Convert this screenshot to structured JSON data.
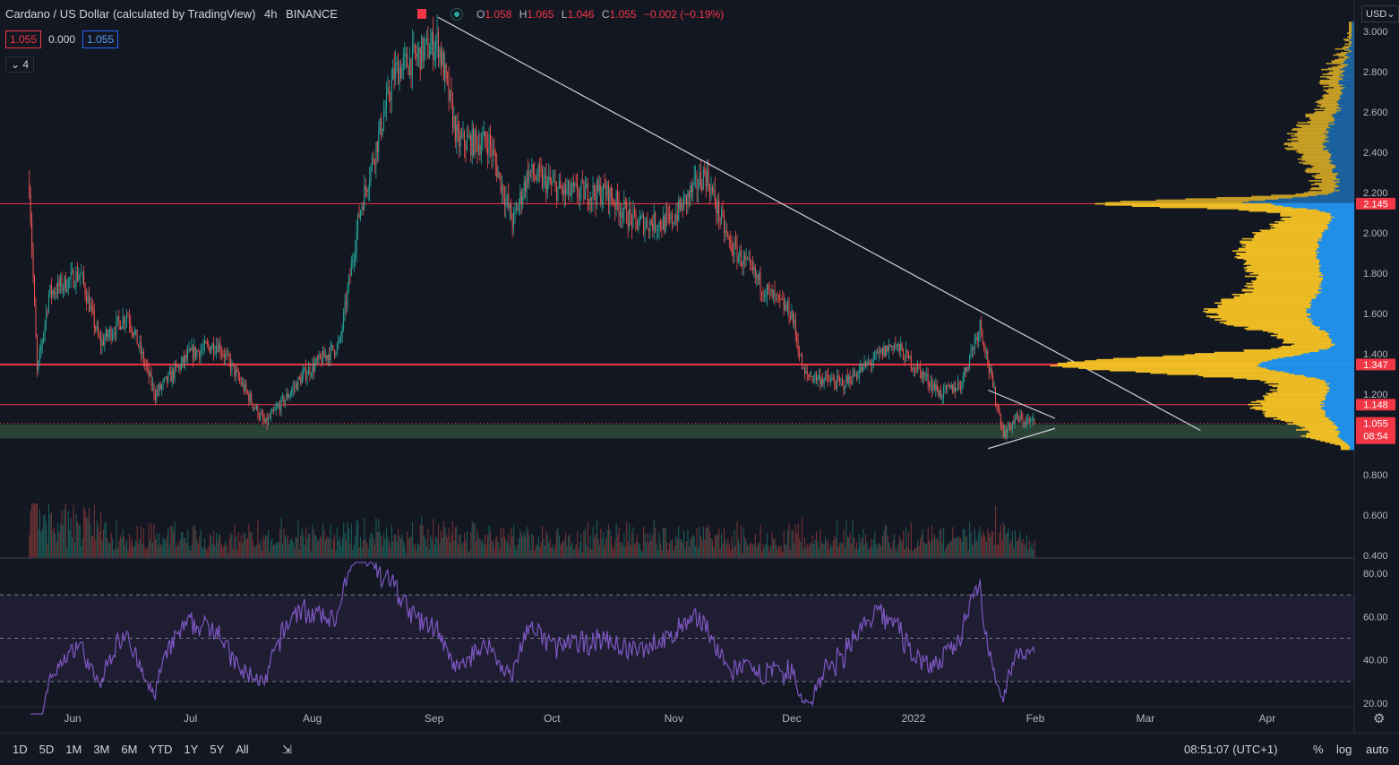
{
  "header": {
    "title": "Cardano / US Dollar (calculated by TradingView)",
    "interval": "4h",
    "exchange": "BINANCE",
    "ohlc": {
      "open": "1.058",
      "high": "1.065",
      "low": "1.046",
      "close": "1.055",
      "change": "−0.002 (−0.19%)"
    },
    "o_label": "O",
    "h_label": "H",
    "l_label": "L",
    "c_label": "C"
  },
  "price_boxes": {
    "bid": "1.055",
    "spread": "0.000",
    "ask": "1.055"
  },
  "indicator_badge": "4",
  "currency_selector": "USD",
  "colors": {
    "bg": "#131722",
    "up": "#26a69a",
    "down": "#ef5350",
    "rsi": "#7e57c2",
    "red_line": "#f23645",
    "vp_up": "#2196f3",
    "vp_down": "#f7c325",
    "support_zone": "#2f4b3a"
  },
  "chart_data": {
    "type": "candlestick",
    "timeframe": "4h",
    "ylim": [
      0.4,
      3.05
    ],
    "y_ticks": [
      "3.000",
      "2.800",
      "2.600",
      "2.400",
      "2.200",
      "2.000",
      "1.800",
      "1.600",
      "1.400",
      "1.200",
      "0.800",
      "0.600",
      "0.400"
    ],
    "x_ticks": [
      "Jun",
      "Jul",
      "Aug",
      "Sep",
      "Oct",
      "Nov",
      "Dec",
      "2022",
      "Feb",
      "Mar",
      "Apr"
    ],
    "price_path": [
      {
        "t": "2021-05-21",
        "p": 2.25
      },
      {
        "t": "2021-05-23",
        "p": 1.3
      },
      {
        "t": "2021-05-26",
        "p": 1.7
      },
      {
        "t": "2021-06-03",
        "p": 1.8
      },
      {
        "t": "2021-06-08",
        "p": 1.45
      },
      {
        "t": "2021-06-15",
        "p": 1.6
      },
      {
        "t": "2021-06-22",
        "p": 1.2
      },
      {
        "t": "2021-07-01",
        "p": 1.4
      },
      {
        "t": "2021-07-08",
        "p": 1.45
      },
      {
        "t": "2021-07-20",
        "p": 1.05
      },
      {
        "t": "2021-07-30",
        "p": 1.3
      },
      {
        "t": "2021-08-08",
        "p": 1.45
      },
      {
        "t": "2021-08-13",
        "p": 2.1
      },
      {
        "t": "2021-08-22",
        "p": 2.8
      },
      {
        "t": "2021-09-02",
        "p": 2.95
      },
      {
        "t": "2021-09-07",
        "p": 2.45
      },
      {
        "t": "2021-09-15",
        "p": 2.45
      },
      {
        "t": "2021-09-21",
        "p": 2.05
      },
      {
        "t": "2021-09-25",
        "p": 2.3
      },
      {
        "t": "2021-10-04",
        "p": 2.2
      },
      {
        "t": "2021-10-15",
        "p": 2.2
      },
      {
        "t": "2021-10-22",
        "p": 2.05
      },
      {
        "t": "2021-10-31",
        "p": 2.05
      },
      {
        "t": "2021-11-09",
        "p": 2.3
      },
      {
        "t": "2021-11-15",
        "p": 1.95
      },
      {
        "t": "2021-11-25",
        "p": 1.7
      },
      {
        "t": "2021-12-01",
        "p": 1.6
      },
      {
        "t": "2021-12-04",
        "p": 1.3
      },
      {
        "t": "2021-12-14",
        "p": 1.25
      },
      {
        "t": "2021-12-27",
        "p": 1.45
      },
      {
        "t": "2022-01-08",
        "p": 1.2
      },
      {
        "t": "2022-01-13",
        "p": 1.25
      },
      {
        "t": "2022-01-18",
        "p": 1.55
      },
      {
        "t": "2022-01-21",
        "p": 1.25
      },
      {
        "t": "2022-01-24",
        "p": 1.0
      },
      {
        "t": "2022-01-27",
        "p": 1.08
      },
      {
        "t": "2022-02-01",
        "p": 1.055
      }
    ],
    "horizontal_levels": [
      "2.145",
      "1.347",
      "1.148"
    ],
    "current_price": "1.055",
    "countdown": "08:54",
    "support_zone": [
      0.98,
      1.05
    ],
    "trendline": {
      "from": [
        "2021-09-02",
        3.07
      ],
      "to": [
        "2022-03-15",
        1.02
      ]
    },
    "triangle": {
      "start": "2022-01-20",
      "end": "2022-02-01",
      "upper": [
        1.22,
        1.08
      ],
      "lower": [
        0.93,
        1.03
      ]
    },
    "volume_profile_levels": [
      0.95,
      1.05,
      1.35,
      2.15
    ],
    "rsi": {
      "period": 14,
      "ylim": [
        20,
        85
      ],
      "y_ticks": [
        "80.00",
        "60.00",
        "40.00",
        "20.00"
      ],
      "bands": [
        30,
        50,
        70
      ]
    }
  },
  "bottom_bar": {
    "ranges": [
      "1D",
      "5D",
      "1M",
      "3M",
      "6M",
      "YTD",
      "1Y",
      "5Y",
      "All"
    ],
    "clock": "08:51:07 (UTC+1)",
    "percent": "%",
    "log": "log",
    "auto": "auto"
  }
}
